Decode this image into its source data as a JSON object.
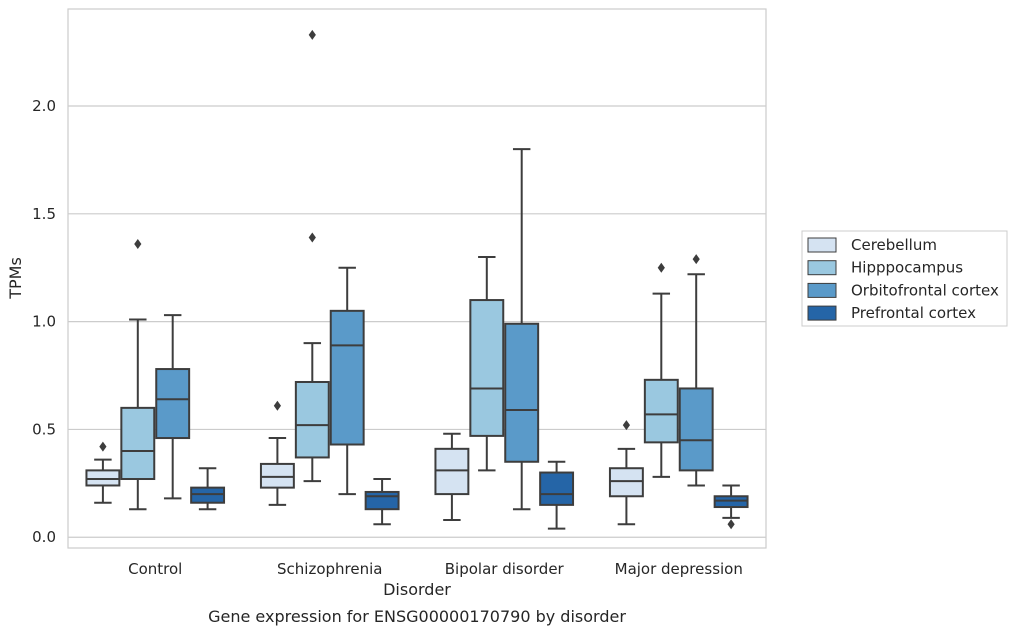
{
  "chart_data": {
    "type": "box",
    "title": "Gene expression for ENSG00000170790 by disorder",
    "xlabel": "Disorder",
    "ylabel": "TPMs",
    "categories": [
      "Control",
      "Schizophrenia",
      "Bipolar disorder",
      "Major depression"
    ],
    "ylim": [
      -0.05,
      2.45
    ],
    "yticks": [
      0.0,
      0.5,
      1.0,
      1.5,
      2.0
    ],
    "ytick_labels": [
      "0.0",
      "0.5",
      "1.0",
      "1.5",
      "2.0"
    ],
    "grid": "horizontal",
    "legend_position": "right",
    "series": [
      {
        "name": "Cerebellum",
        "color": "#d5e3f2",
        "boxes": [
          {
            "whislo": 0.16,
            "q1": 0.24,
            "med": 0.27,
            "q3": 0.31,
            "whishi": 0.36,
            "fliers": [
              0.42
            ]
          },
          {
            "whislo": 0.15,
            "q1": 0.23,
            "med": 0.28,
            "q3": 0.34,
            "whishi": 0.46,
            "fliers": [
              0.61
            ]
          },
          {
            "whislo": 0.08,
            "q1": 0.2,
            "med": 0.31,
            "q3": 0.41,
            "whishi": 0.48,
            "fliers": []
          },
          {
            "whislo": 0.06,
            "q1": 0.19,
            "med": 0.26,
            "q3": 0.32,
            "whishi": 0.41,
            "fliers": [
              0.52
            ]
          }
        ]
      },
      {
        "name": "Hipppocampus",
        "color": "#9ac8e0",
        "boxes": [
          {
            "whislo": 0.13,
            "q1": 0.27,
            "med": 0.4,
            "q3": 0.6,
            "whishi": 1.01,
            "fliers": [
              1.36
            ]
          },
          {
            "whislo": 0.26,
            "q1": 0.37,
            "med": 0.52,
            "q3": 0.72,
            "whishi": 0.9,
            "fliers": [
              1.39,
              2.33
            ]
          },
          {
            "whislo": 0.31,
            "q1": 0.47,
            "med": 0.69,
            "q3": 1.1,
            "whishi": 1.3,
            "fliers": []
          },
          {
            "whislo": 0.28,
            "q1": 0.44,
            "med": 0.57,
            "q3": 0.73,
            "whishi": 1.13,
            "fliers": [
              1.25
            ]
          }
        ]
      },
      {
        "name": "Orbitofrontal cortex",
        "color": "#5a9ac9",
        "boxes": [
          {
            "whislo": 0.18,
            "q1": 0.46,
            "med": 0.64,
            "q3": 0.78,
            "whishi": 1.03,
            "fliers": []
          },
          {
            "whislo": 0.2,
            "q1": 0.43,
            "med": 0.89,
            "q3": 1.05,
            "whishi": 1.25,
            "fliers": []
          },
          {
            "whislo": 0.13,
            "q1": 0.35,
            "med": 0.59,
            "q3": 0.99,
            "whishi": 1.8,
            "fliers": []
          },
          {
            "whislo": 0.24,
            "q1": 0.31,
            "med": 0.45,
            "q3": 0.69,
            "whishi": 1.22,
            "fliers": [
              1.29
            ]
          }
        ]
      },
      {
        "name": "Prefrontal cortex",
        "color": "#2565a7",
        "boxes": [
          {
            "whislo": 0.13,
            "q1": 0.16,
            "med": 0.2,
            "q3": 0.23,
            "whishi": 0.32,
            "fliers": []
          },
          {
            "whislo": 0.06,
            "q1": 0.13,
            "med": 0.19,
            "q3": 0.21,
            "whishi": 0.27,
            "fliers": []
          },
          {
            "whislo": 0.04,
            "q1": 0.15,
            "med": 0.2,
            "q3": 0.3,
            "whishi": 0.35,
            "fliers": []
          },
          {
            "whislo": 0.09,
            "q1": 0.14,
            "med": 0.17,
            "q3": 0.19,
            "whishi": 0.24,
            "fliers": [
              0.06
            ]
          }
        ]
      }
    ]
  }
}
